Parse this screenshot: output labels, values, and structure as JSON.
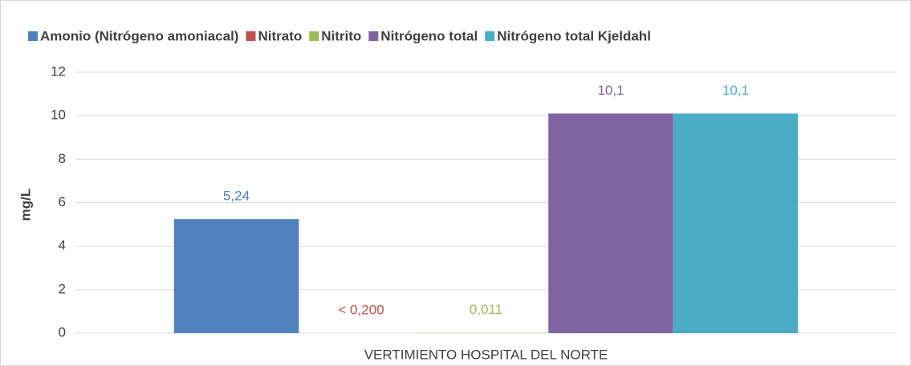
{
  "chart_data": {
    "type": "bar",
    "categories": [
      "VERTIMIENTO HOSPITAL DEL NORTE"
    ],
    "y_label": "mg/L",
    "ylim": [
      0,
      12
    ],
    "yticks": [
      0,
      2,
      4,
      6,
      8,
      10,
      12
    ],
    "grid": true,
    "legend": "top",
    "series": [
      {
        "name": "Amonio (Nitrógeno amoniacal)",
        "color": "#4f81bd",
        "values": [
          5.24
        ],
        "value_labels": [
          "5,24"
        ]
      },
      {
        "name": "Nitrato",
        "color": "#c0504d",
        "values": [
          null
        ],
        "value_labels": [
          "< 0,200"
        ]
      },
      {
        "name": "Nitrito",
        "color": "#9bbb59",
        "values": [
          0.011
        ],
        "value_labels": [
          "0,011"
        ]
      },
      {
        "name": "Nitrógeno total",
        "color": "#8064a2",
        "values": [
          10.1
        ],
        "value_labels": [
          "10,1"
        ]
      },
      {
        "name": "Nitrógeno total Kjeldahl",
        "color": "#4bacc6",
        "values": [
          10.1
        ],
        "value_labels": [
          "10,1"
        ]
      }
    ]
  }
}
